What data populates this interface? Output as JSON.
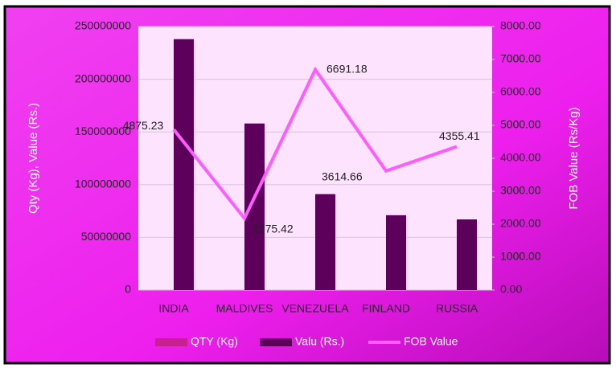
{
  "chart_data": {
    "type": "bar_line",
    "categories": [
      "INDIA",
      "MALDIVES",
      "VENEZUELA",
      "FINLAND",
      "RUSSIA"
    ],
    "series": [
      {
        "name": "QTY (Kg)",
        "color": "#c8208e",
        "values": [
          48800,
          72700,
          13600,
          19600,
          15400
        ]
      },
      {
        "name": "Valu (Rs.)",
        "color": "#5c005c",
        "values": [
          238000000,
          158000000,
          91000000,
          71000000,
          67000000
        ]
      },
      {
        "name": "FOB Value",
        "color": "#ff5cff",
        "axis": "y2",
        "values": [
          4875.23,
          2175.42,
          6691.18,
          3614.66,
          4355.41
        ]
      }
    ],
    "ylabel": "Qty (Kg), Value (Rs.)",
    "y2label": "FOB Value (Rs/Kg)",
    "ylim": [
      0,
      250000000
    ],
    "yticks": [
      0,
      50000000,
      100000000,
      150000000,
      200000000,
      250000000
    ],
    "y2lim": [
      0,
      8000
    ],
    "y2ticks": [
      {
        "value": 0,
        "label": "0.00"
      },
      {
        "value": 1000,
        "label": "1000.00"
      },
      {
        "value": 2000,
        "label": "2000.00"
      },
      {
        "value": 3000,
        "label": "3000.00"
      },
      {
        "value": 4000,
        "label": "4000.00"
      },
      {
        "value": 5000,
        "label": "5000.00"
      },
      {
        "value": 6000,
        "label": "6000.00"
      },
      {
        "value": 7000,
        "label": "7000.00"
      },
      {
        "value": 8000,
        "label": "8000.00"
      }
    ],
    "grid": true,
    "legend": "bottom"
  }
}
